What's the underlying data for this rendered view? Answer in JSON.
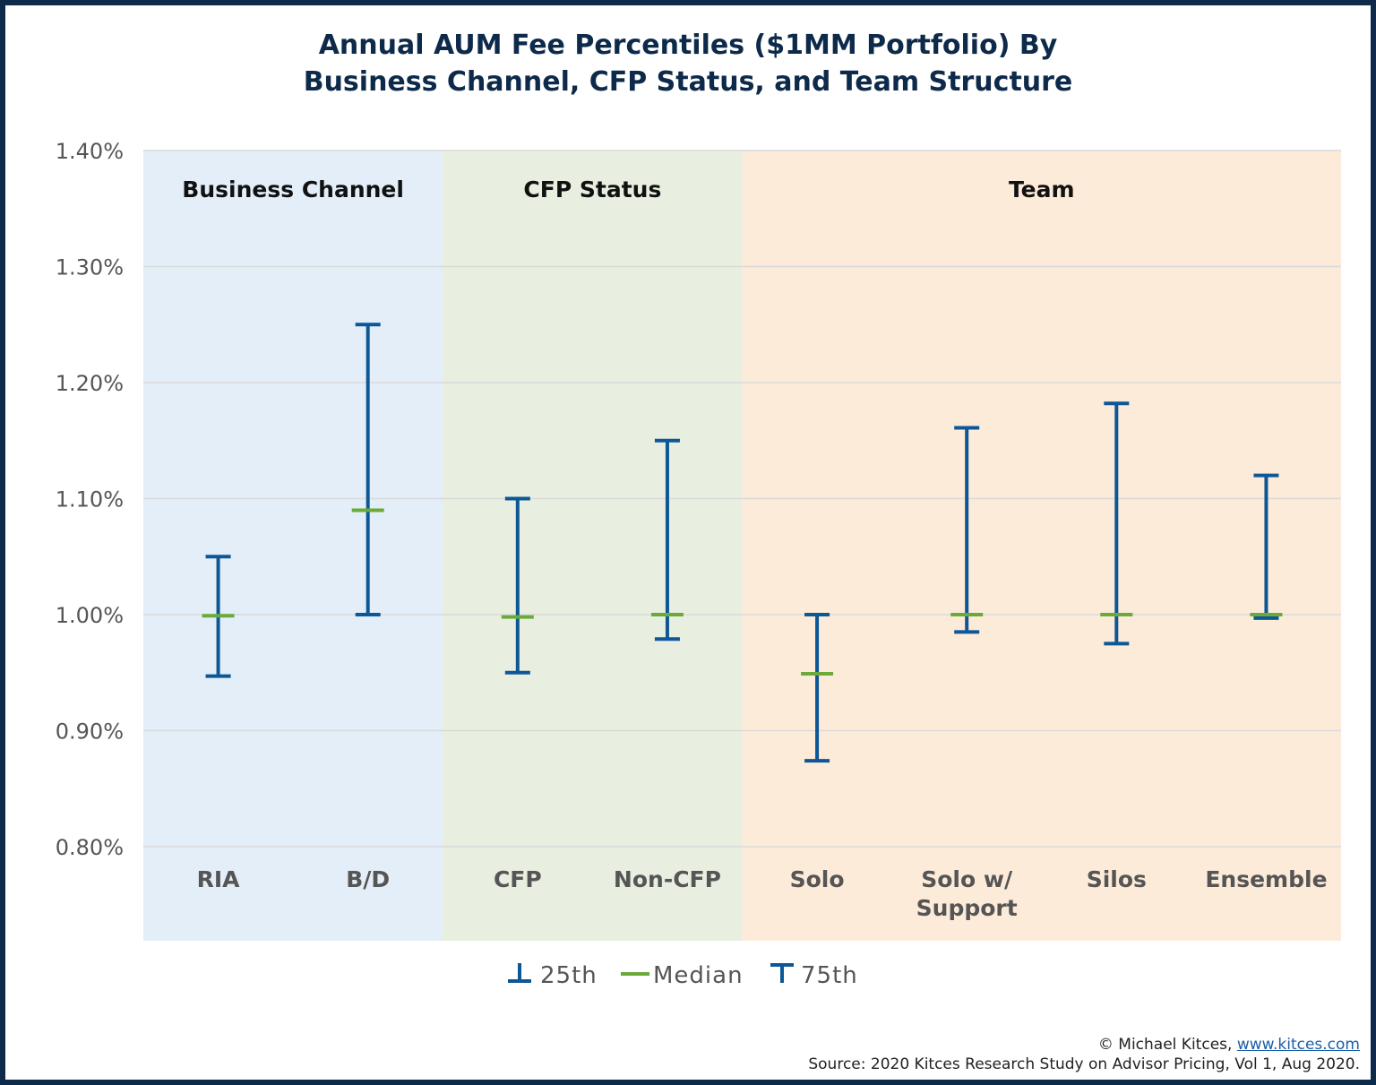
{
  "chart_data": {
    "type": "errorbar",
    "title_line1": "Annual AUM Fee Percentiles ($1MM Portfolio) By",
    "title_line2": "Business Channel, CFP Status, and Team Structure",
    "ylim": [
      0.8,
      1.4
    ],
    "yticks": [
      "1.40%",
      "1.30%",
      "1.20%",
      "1.10%",
      "1.00%",
      "0.90%",
      "0.80%"
    ],
    "ytick_values": [
      1.4,
      1.3,
      1.2,
      1.1,
      1.0,
      0.9,
      0.8
    ],
    "grid": true,
    "groups": [
      {
        "label": "Business Channel",
        "color": "#e3eef8",
        "categories": [
          0,
          1
        ]
      },
      {
        "label": "CFP Status",
        "color": "#e8efe0",
        "categories": [
          2,
          3
        ]
      },
      {
        "label": "Team",
        "color": "#fdebd9",
        "categories": [
          4,
          5,
          6,
          7
        ]
      }
    ],
    "categories": [
      [
        "RIA"
      ],
      [
        "B/D"
      ],
      [
        "CFP"
      ],
      [
        "Non-CFP"
      ],
      [
        "Solo"
      ],
      [
        "Solo w/",
        "Support"
      ],
      [
        "Silos"
      ],
      [
        "Ensemble"
      ]
    ],
    "p25": [
      0.947,
      1.0,
      0.95,
      0.979,
      0.874,
      0.985,
      0.975,
      0.997
    ],
    "median": [
      0.999,
      1.09,
      0.998,
      1.0,
      0.949,
      1.0,
      1.0,
      1.0
    ],
    "p75": [
      1.05,
      1.25,
      1.1,
      1.15,
      1.0,
      1.161,
      1.182,
      1.12
    ],
    "legend": {
      "p25": "25th",
      "median": "Median",
      "p75": "75th",
      "position": "bottom"
    },
    "colors": {
      "bar": "#0d5796",
      "median": "#6aaa3a",
      "grid": "#d9d9d9",
      "axis_text": "#555555"
    }
  },
  "footer": {
    "copyright": "© Michael Kitces, ",
    "link": "www.kitces.com",
    "source": "Source: 2020 Kitces Research Study on Advisor Pricing, Vol 1, Aug 2020."
  }
}
